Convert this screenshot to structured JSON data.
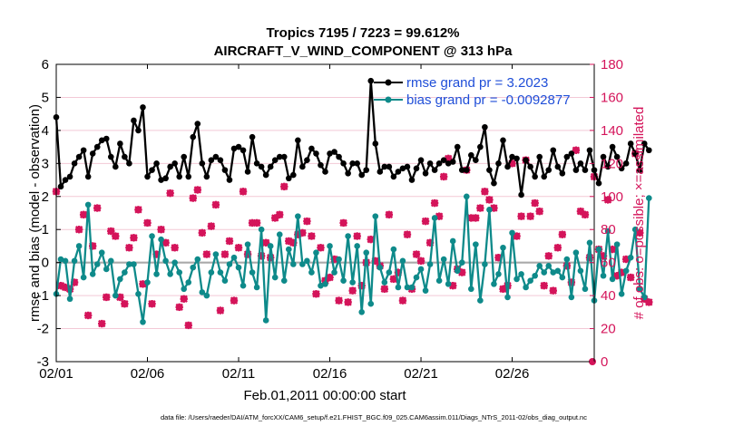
{
  "chart_data": {
    "type": "line",
    "title": "Tropics 7195 / 7223 = 99.612%",
    "subtitle": "AIRCRAFT_V_WIND_COMPONENT @ 313 hPa",
    "xlabel": "Feb.01,2011 00:00:00 start",
    "ylabel": "rmse and bias (model - observation)",
    "y2label": "# of obs: o=possible; ×=assimilated",
    "footnote": "data file: /Users/raeder/DAI/ATM_forcXX/CAM6_setup/f.e21.FHIST_BGC.f09_025.CAM6assim.011/Diags_NTrS_2011-02/obs_diag_output.nc",
    "xlim": [
      0,
      29.5
    ],
    "ylim": [
      -3,
      6
    ],
    "y2lim": [
      0,
      180
    ],
    "x_tick_values": [
      0,
      5,
      10,
      15,
      20,
      25
    ],
    "x_tick_labels": [
      "02/01",
      "02/06",
      "02/11",
      "02/16",
      "02/21",
      "02/26"
    ],
    "y_ticks": [
      -3,
      -2,
      -1,
      0,
      1,
      2,
      3,
      4,
      5,
      6
    ],
    "y2_ticks": [
      0,
      20,
      40,
      60,
      80,
      100,
      120,
      140,
      160,
      180
    ],
    "x_step_days": 0.25,
    "colors": {
      "rmse": "#000000",
      "bias": "#0e8a8a",
      "obs": "#d4145a",
      "zero_line": "#aaaaaa",
      "grid": "#f3c9d6"
    },
    "legend": {
      "placement": "top-right",
      "entries": [
        "rmse grand pr = 3.2023",
        "bias grand pr = -0.0092877"
      ]
    },
    "series": [
      {
        "name": "rmse",
        "label": "rmse grand pr = 3.2023",
        "values": [
          4.4,
          2.3,
          2.5,
          2.6,
          3.0,
          3.2,
          3.4,
          2.6,
          3.3,
          3.5,
          3.7,
          3.75,
          3.2,
          2.9,
          3.6,
          3.2,
          3.0,
          4.3,
          4.0,
          4.7,
          2.6,
          2.8,
          3.0,
          2.5,
          2.55,
          2.9,
          3.0,
          2.6,
          3.2,
          2.6,
          3.8,
          4.2,
          3.0,
          2.6,
          3.1,
          3.2,
          3.1,
          2.8,
          2.5,
          3.45,
          3.5,
          3.4,
          2.75,
          3.8,
          3.0,
          2.9,
          2.65,
          2.9,
          3.1,
          3.2,
          3.2,
          2.55,
          2.65,
          3.7,
          2.9,
          3.1,
          3.45,
          3.3,
          2.95,
          2.75,
          3.3,
          3.35,
          3.2,
          3.0,
          2.7,
          3.0,
          3.0,
          2.65,
          2.8,
          5.5,
          3.6,
          2.75,
          2.9,
          2.9,
          2.6,
          2.75,
          2.85,
          2.9,
          2.5,
          2.85,
          3.1,
          2.7,
          3.0,
          2.8,
          3.0,
          3.1,
          3.0,
          3.05,
          3.5,
          2.8,
          2.8,
          3.25,
          3.1,
          3.5,
          4.1,
          2.8,
          2.4,
          3.0,
          3.7,
          2.9,
          3.2,
          3.15,
          2.05,
          3.1,
          2.9,
          2.6,
          3.2,
          2.6,
          2.8,
          3.4,
          2.9,
          2.7,
          3.2,
          3.3,
          2.8,
          3.0,
          2.8,
          3.4,
          2.8,
          2.4,
          3.2,
          2.9,
          3.5,
          3.2,
          2.85,
          3.0,
          3.6,
          3.3,
          2.8,
          3.6,
          3.4
        ]
      },
      {
        "name": "bias",
        "label": "bias grand pr = -0.0092877",
        "values": [
          -0.95,
          0.1,
          0.05,
          -1.1,
          0.05,
          0.5,
          -0.45,
          1.75,
          -0.35,
          -0.05,
          0.3,
          -0.2,
          0.05,
          -1.0,
          -0.5,
          -0.3,
          -0.05,
          -0.05,
          -0.95,
          -1.8,
          -0.6,
          0.8,
          -0.35,
          0.7,
          0.05,
          -0.35,
          0.0,
          -0.3,
          -0.8,
          -0.6,
          -0.15,
          0.1,
          -0.9,
          -1.0,
          -0.3,
          0.25,
          -0.3,
          -0.55,
          -0.05,
          0.15,
          -0.15,
          -0.7,
          0.55,
          -0.3,
          -0.75,
          1.0,
          -1.75,
          0.5,
          -0.45,
          0.85,
          -0.55,
          0.4,
          -0.05,
          1.4,
          -0.05,
          0.05,
          -0.3,
          0.3,
          -0.7,
          -0.65,
          0.5,
          -0.3,
          0.1,
          -0.55,
          0.8,
          -0.6,
          0.5,
          -1.5,
          0.3,
          -1.25,
          1.4,
          -0.15,
          -0.6,
          -0.3,
          0.4,
          -0.75,
          0.05,
          -0.75,
          -0.75,
          -0.45,
          -0.2,
          -0.85,
          -0.05,
          1.35,
          -0.55,
          0.1,
          -0.65,
          0.65,
          -0.25,
          0.0,
          2.0,
          -0.8,
          0.55,
          -1.15,
          -0.05,
          1.6,
          -0.65,
          -0.35,
          0.45,
          -1.05,
          0.9,
          -0.5,
          -0.35,
          -0.75,
          -0.55,
          -0.4,
          -0.1,
          -0.3,
          -0.1,
          -0.3,
          -0.25,
          -0.45,
          0.1,
          -1.05,
          0.3,
          -0.25,
          -0.8,
          0.6,
          -1.15,
          0.4,
          -0.4,
          0.95,
          -0.5,
          0.55,
          -0.95,
          -0.25,
          0.15,
          1.0,
          -0.8,
          -1.05,
          1.95
        ]
      },
      {
        "name": "obs_used",
        "label": "# of obs assimilated",
        "values": [
          103,
          46,
          45,
          44,
          48,
          80,
          89,
          28,
          70,
          93,
          23,
          39,
          79,
          76,
          39,
          35,
          69,
          75,
          92,
          47,
          84,
          35,
          65,
          80,
          72,
          102,
          69,
          33,
          38,
          22,
          99,
          104,
          78,
          65,
          82,
          95,
          31,
          65,
          73,
          37,
          69,
          103,
          65,
          84,
          84,
          64,
          72,
          63,
          87,
          89,
          106,
          73,
          72,
          77,
          78,
          85,
          76,
          41,
          69,
          49,
          51,
          62,
          37,
          84,
          36,
          43,
          76,
          46,
          60,
          74,
          61,
          58,
          44,
          89,
          50,
          54,
          37,
          77,
          44,
          65,
          61,
          85,
          72,
          96,
          88,
          112,
          123,
          46,
          56,
          54,
          116,
          87,
          87,
          93,
          103,
          98,
          93,
          63,
          44,
          46,
          120,
          76,
          88,
          122,
          88,
          96,
          91,
          46,
          64,
          43,
          69,
          77,
          58,
          48,
          128,
          91,
          89,
          63,
          112,
          68,
          64,
          98,
          68,
          52,
          54,
          62,
          51,
          126,
          78,
          38,
          36
        ]
      },
      {
        "name": "obs_possible",
        "label": "# of obs possible",
        "values": [
          103,
          46,
          45,
          44,
          48,
          80,
          89,
          28,
          70,
          93,
          23,
          39,
          79,
          76,
          39,
          35,
          69,
          75,
          92,
          47,
          84,
          35,
          65,
          80,
          72,
          102,
          69,
          33,
          38,
          22,
          99,
          104,
          78,
          65,
          82,
          95,
          31,
          65,
          73,
          37,
          69,
          103,
          65,
          84,
          84,
          64,
          72,
          63,
          87,
          89,
          106,
          73,
          72,
          77,
          78,
          85,
          76,
          41,
          69,
          49,
          51,
          62,
          37,
          84,
          36,
          43,
          76,
          46,
          60,
          74,
          61,
          58,
          44,
          89,
          50,
          54,
          37,
          77,
          44,
          65,
          61,
          85,
          72,
          96,
          88,
          112,
          123,
          46,
          56,
          54,
          116,
          87,
          87,
          93,
          103,
          98,
          93,
          63,
          44,
          46,
          120,
          76,
          88,
          122,
          88,
          96,
          91,
          46,
          64,
          43,
          69,
          77,
          58,
          48,
          128,
          91,
          89,
          63,
          112,
          68,
          64,
          98,
          68,
          52,
          54,
          62,
          51,
          126,
          78,
          38,
          36
        ]
      }
    ],
    "extra_obs_markers": [
      {
        "x": 29.4,
        "y2": 0
      }
    ]
  }
}
